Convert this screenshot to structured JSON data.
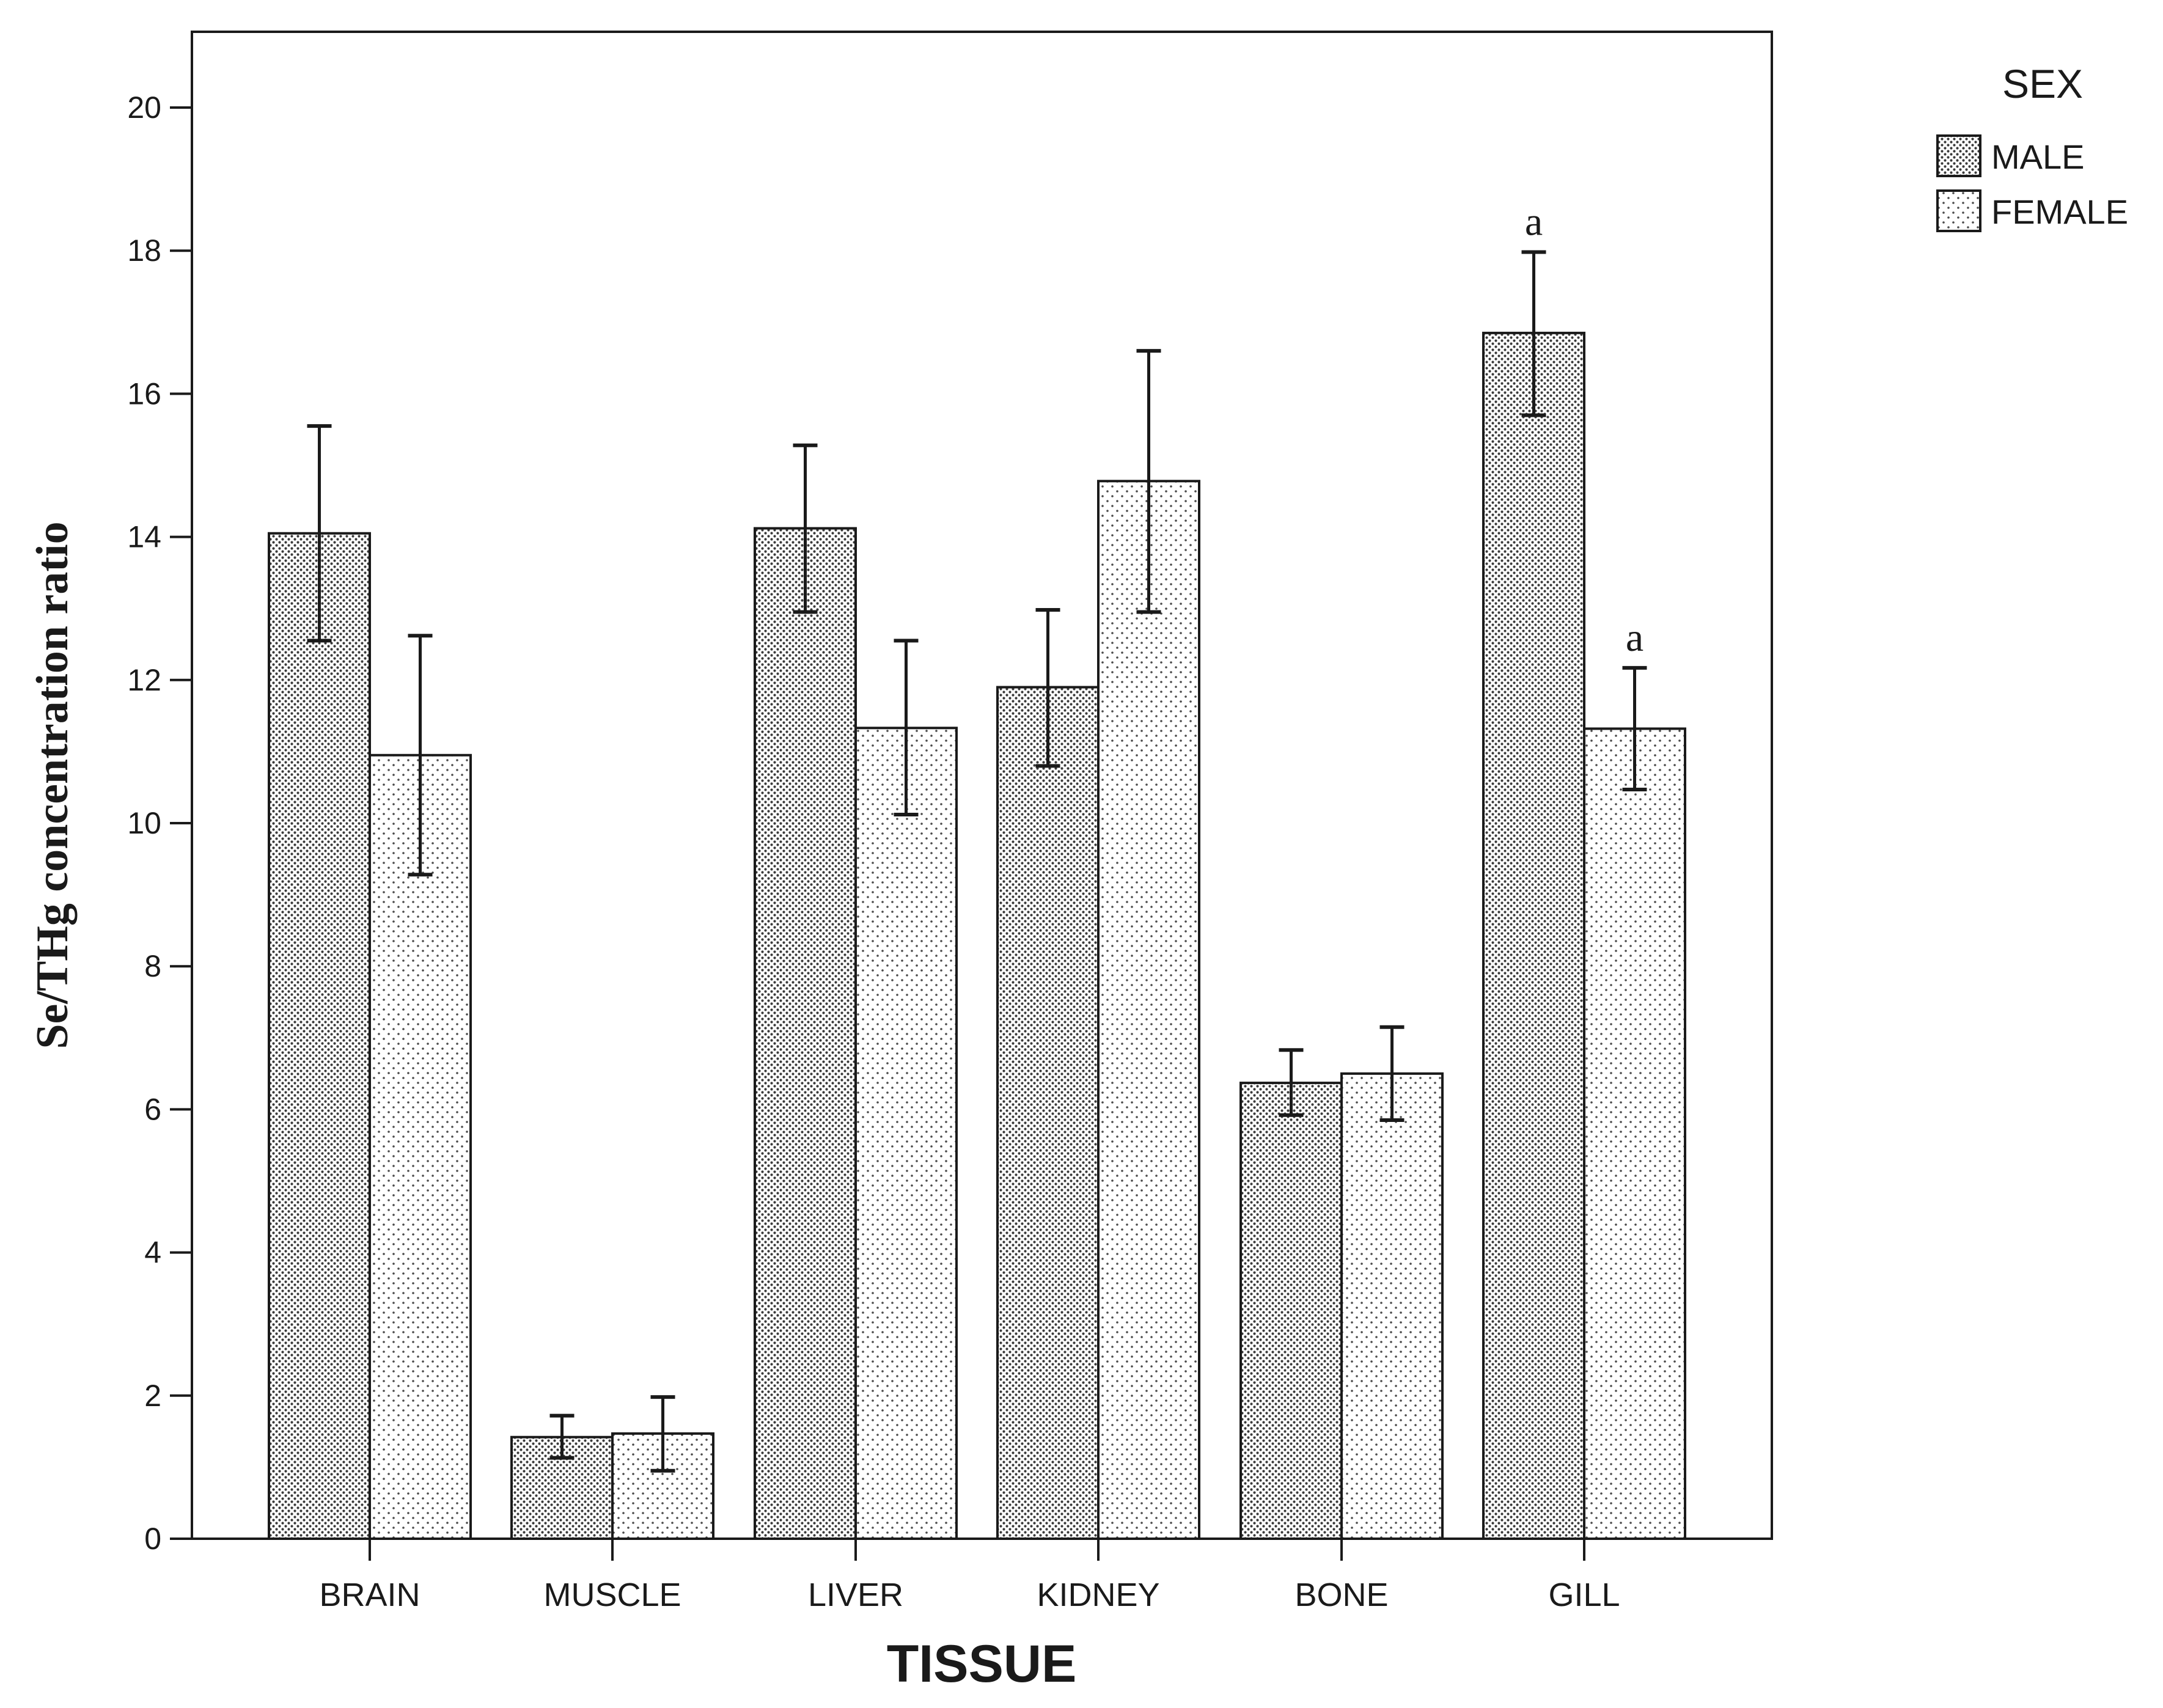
{
  "chart_data": {
    "type": "bar",
    "title": "",
    "xlabel": "TISSUE",
    "ylabel": "Se/THg concentration ratio",
    "ylim": [
      0,
      21
    ],
    "yticks": [
      0,
      2,
      4,
      6,
      8,
      10,
      12,
      14,
      16,
      18,
      20
    ],
    "categories": [
      "BRAIN",
      "MUSCLE",
      "LIVER",
      "KIDNEY",
      "BONE",
      "GILL"
    ],
    "legend_title": "SEX",
    "legend_position": "top-right outside",
    "series": [
      {
        "name": "MALE",
        "pattern": "dense-dots",
        "values": [
          14.05,
          1.42,
          14.12,
          11.9,
          6.37,
          16.85
        ],
        "error_low": [
          12.55,
          1.13,
          12.95,
          10.8,
          5.92,
          15.7
        ],
        "error_high": [
          15.55,
          1.72,
          15.28,
          12.98,
          6.83,
          17.98
        ]
      },
      {
        "name": "FEMALE",
        "pattern": "sparse-dots",
        "values": [
          10.95,
          1.47,
          11.33,
          14.78,
          6.5,
          11.32
        ],
        "error_low": [
          9.28,
          0.95,
          10.12,
          12.95,
          5.85,
          10.47
        ],
        "error_high": [
          12.62,
          1.98,
          12.55,
          16.6,
          7.15,
          12.17
        ]
      }
    ],
    "annotations": [
      {
        "category": "GILL",
        "series": "MALE",
        "text": "a"
      },
      {
        "category": "GILL",
        "series": "FEMALE",
        "text": "a"
      }
    ]
  }
}
